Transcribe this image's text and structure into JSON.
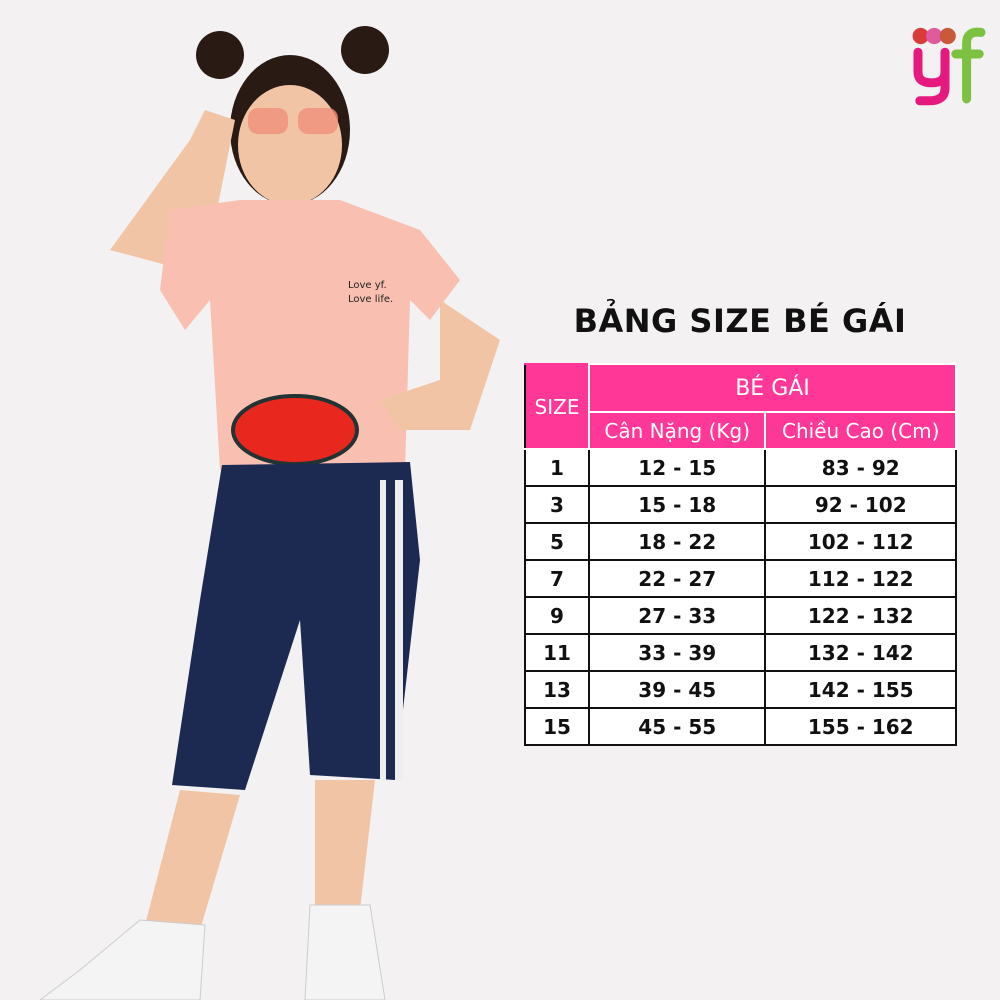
{
  "brand": {
    "logo_text": "yf",
    "colors": {
      "y": "#e6197f",
      "f": "#7cc142",
      "dots": [
        "#d93a3a",
        "#e05aa0",
        "#c85a3a"
      ]
    }
  },
  "title": "BẢNG SIZE BÉ GÁI",
  "table": {
    "size_header": "SIZE",
    "group_header": "BÉ GÁI",
    "columns": [
      "Cân Nặng (Kg)",
      "Chiều Cao (Cm)"
    ],
    "rows": [
      {
        "size": "1",
        "weight": "12 - 15",
        "height": "83 - 92"
      },
      {
        "size": "3",
        "weight": "15 - 18",
        "height": "92 - 102"
      },
      {
        "size": "5",
        "weight": "18 - 22",
        "height": "102 - 112"
      },
      {
        "size": "7",
        "weight": "22 - 27",
        "height": "112 - 122"
      },
      {
        "size": "9",
        "weight": "27 - 33",
        "height": "122 - 132"
      },
      {
        "size": "11",
        "weight": "33 - 39",
        "height": "132 - 142"
      },
      {
        "size": "13",
        "weight": "39 - 45",
        "height": "142 - 155"
      },
      {
        "size": "15",
        "weight": "45 - 55",
        "height": "155 - 162"
      }
    ],
    "header_color": "#ff3796"
  },
  "shirt_print": [
    "Love yf.",
    "Love life."
  ]
}
